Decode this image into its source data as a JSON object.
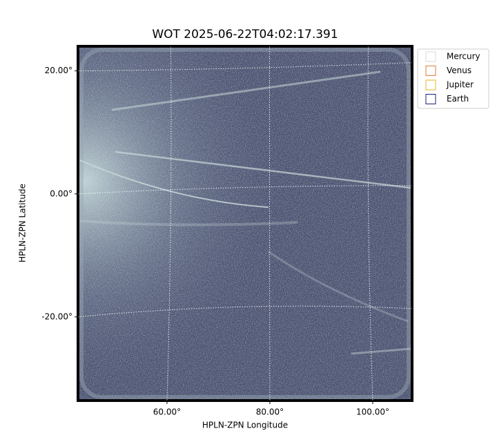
{
  "chart_data": {
    "type": "image",
    "title": "WOT 2025-06-22T04:02:17.391",
    "xlabel": "HPLN-ZPN Longitude",
    "ylabel": "HPLN-ZPN Latitude",
    "xlim": [
      42.7,
      107.65
    ],
    "ylim": [
      -33.6,
      24.0
    ],
    "xticks": [
      {
        "value": 60,
        "label": "60.00°"
      },
      {
        "value": 80,
        "label": "80.00°"
      },
      {
        "value": 100,
        "label": "100.00°"
      }
    ],
    "yticks": [
      {
        "value": 20,
        "label": "20.00°"
      },
      {
        "value": 0,
        "label": "0.00°"
      },
      {
        "value": -20,
        "label": "-20.00°"
      }
    ],
    "grid": true,
    "legend": "upper right",
    "legend_entries": [
      {
        "name": "Mercury",
        "color": "#d9d9d9"
      },
      {
        "name": "Venus",
        "color": "#e07b39"
      },
      {
        "name": "Jupiter",
        "color": "#e6b422"
      },
      {
        "name": "Earth",
        "color": "#1f1f7a"
      }
    ]
  }
}
